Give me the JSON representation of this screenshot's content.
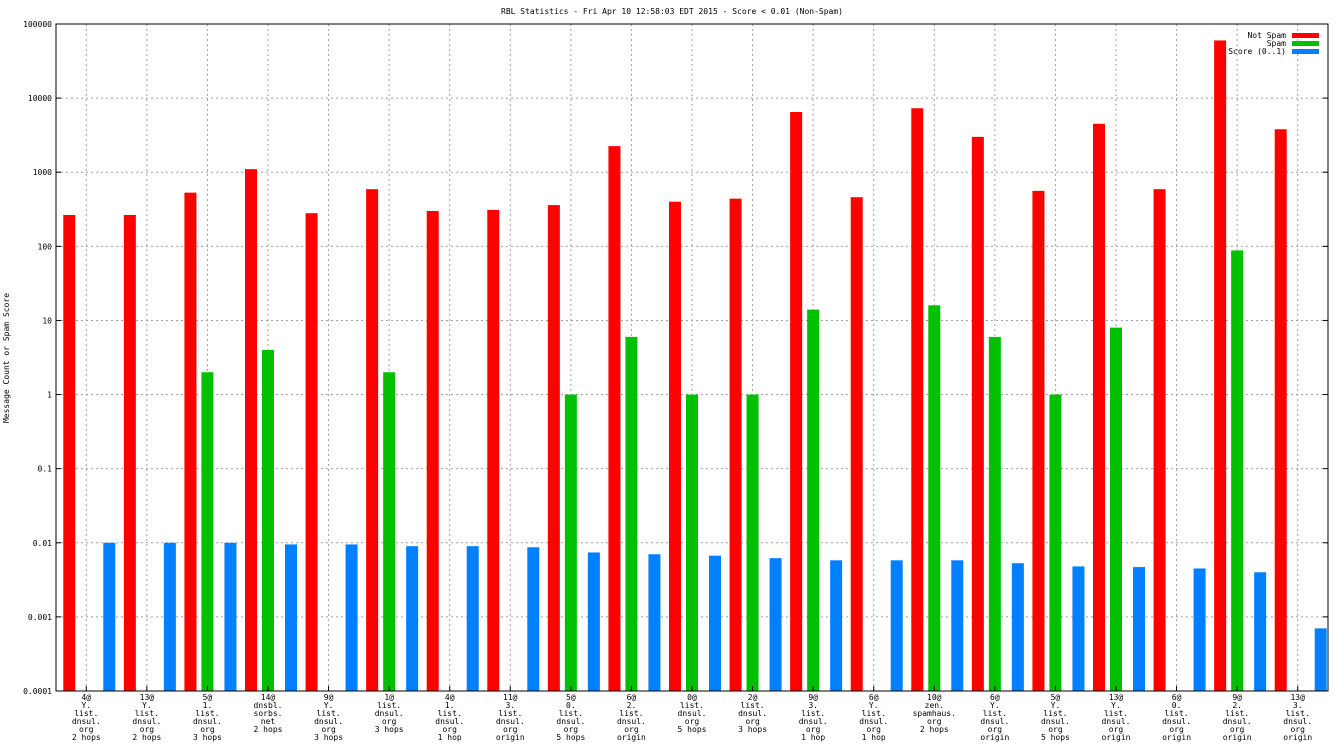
{
  "chart_data": {
    "type": "bar",
    "title": "RBL Statistics - Fri Apr 10 12:58:03 EDT 2015 - Score < 0.01 (Non-Spam)",
    "xlabel": "",
    "ylabel": "Message Count or Spam Score",
    "yscale": "log",
    "ylim": [
      0.0001,
      100000
    ],
    "yticks": [
      "0.0001",
      "0.001",
      "0.01",
      "0.1",
      "1",
      "10",
      "100",
      "1000",
      "10000",
      "100000"
    ],
    "grid": true,
    "legend_position": "top-right",
    "categories": [
      [
        "4@",
        "Y.",
        "list.",
        "dnsul.",
        "org",
        "2 hops"
      ],
      [
        "13@",
        "Y.",
        "list.",
        "dnsul.",
        "org",
        "2 hops"
      ],
      [
        "5@",
        "1.",
        "list.",
        "dnsul.",
        "org",
        "3 hops"
      ],
      [
        "14@",
        "dnsbl.",
        "sorbs.",
        "net",
        "2 hops"
      ],
      [
        "9@",
        "Y.",
        "list.",
        "dnsul.",
        "org",
        "3 hops"
      ],
      [
        "1@",
        "list.",
        "dnsul.",
        "org",
        "3 hops"
      ],
      [
        "4@",
        "1.",
        "list.",
        "dnsul.",
        "org",
        "1 hop"
      ],
      [
        "11@",
        "3.",
        "list.",
        "dnsul.",
        "org",
        "origin"
      ],
      [
        "5@",
        "0.",
        "list.",
        "dnsul.",
        "org",
        "5 hops"
      ],
      [
        "6@",
        "2.",
        "list.",
        "dnsul.",
        "org",
        "origin"
      ],
      [
        "0@",
        "list.",
        "dnsul.",
        "org",
        "5 hops"
      ],
      [
        "2@",
        "list.",
        "dnsul.",
        "org",
        "3 hops"
      ],
      [
        "9@",
        "3.",
        "list.",
        "dnsul.",
        "org",
        "1 hop"
      ],
      [
        "6@",
        "Y.",
        "list.",
        "dnsul.",
        "org",
        "1 hop"
      ],
      [
        "10@",
        "zen.",
        "spamhaus.",
        "org",
        "2 hops"
      ],
      [
        "6@",
        "Y.",
        "list.",
        "dnsul.",
        "org",
        "origin"
      ],
      [
        "5@",
        "Y.",
        "list.",
        "dnsul.",
        "org",
        "5 hops"
      ],
      [
        "13@",
        "Y.",
        "list.",
        "dnsul.",
        "org",
        "origin"
      ],
      [
        "6@",
        "0.",
        "list.",
        "dnsul.",
        "org",
        "origin"
      ],
      [
        "9@",
        "2.",
        "list.",
        "dnsul.",
        "org",
        "origin"
      ],
      [
        "13@",
        "3.",
        "list.",
        "dnsul.",
        "org",
        "origin"
      ]
    ],
    "series": [
      {
        "name": "Not Spam",
        "color": "#ff0000",
        "values": [
          265,
          265,
          530,
          1100,
          280,
          590,
          300,
          310,
          360,
          2250,
          400,
          440,
          6500,
          460,
          7300,
          3000,
          560,
          4500,
          590,
          60000,
          3800
        ]
      },
      {
        "name": "Spam",
        "color": "#00c000",
        "values": [
          null,
          null,
          2,
          4,
          null,
          2,
          null,
          null,
          1,
          6,
          1,
          1,
          14,
          null,
          16,
          6,
          1,
          8,
          null,
          88,
          null
        ]
      },
      {
        "name": "Score (0..1)",
        "color": "#0080ff",
        "values": [
          0.01,
          0.01,
          0.01,
          0.0095,
          0.0095,
          0.009,
          0.009,
          0.0087,
          0.0074,
          0.007,
          0.0067,
          0.0062,
          0.0058,
          0.0058,
          0.0058,
          0.0053,
          0.0048,
          0.0047,
          0.0045,
          0.004,
          0.0007
        ]
      }
    ]
  }
}
